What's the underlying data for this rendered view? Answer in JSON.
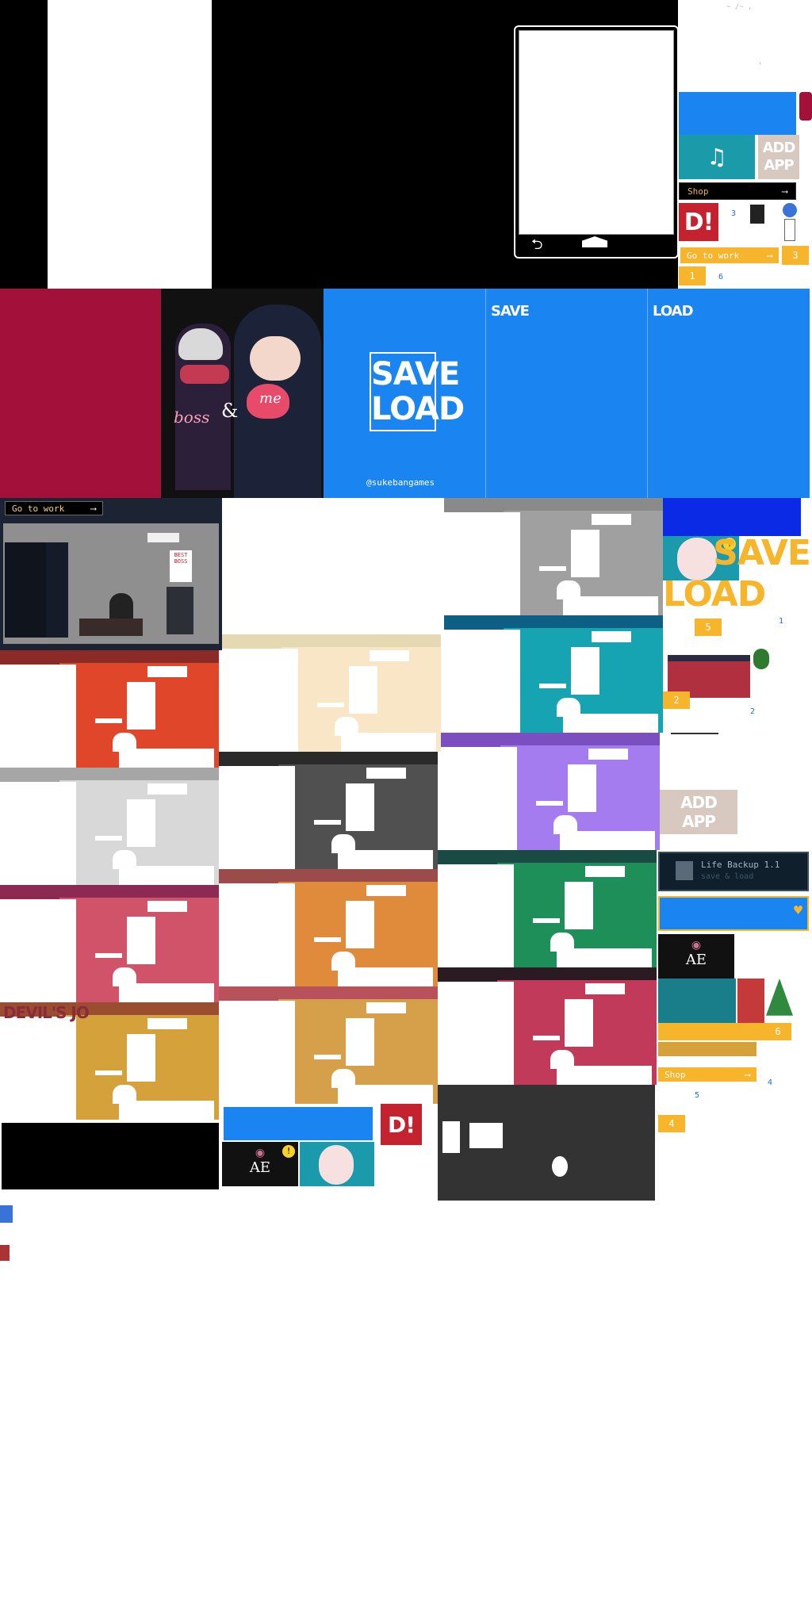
{
  "phone": {
    "back_icon": "back-arrow-icon",
    "home_icon": "home-icon"
  },
  "music_app": {
    "icon": "music-note-icon"
  },
  "add_app": {
    "line1": "ADD",
    "line2": "APP"
  },
  "shop_button": {
    "label": "Shop",
    "icon": "arrow-right-icon"
  },
  "go_to_work": {
    "label": "Go to work",
    "icon": "arrow-right-icon"
  },
  "numbers": {
    "n1": "1",
    "n2": "2",
    "n3": "3",
    "n4": "4",
    "n5": "5",
    "n6": "6"
  },
  "save_load_logo": {
    "line1": "SAVE",
    "line2": "LOAD",
    "credit": "@sukebangames"
  },
  "save_panel": {
    "title": "SAVE"
  },
  "load_panel": {
    "title": "LOAD"
  },
  "poster": {
    "text1": "boss",
    "text2": "&",
    "text3": "me"
  },
  "room_sign": {
    "line1": "BEST",
    "line2": "BOSS"
  },
  "save_load_icon": {
    "line1": "SAVE",
    "line2": "LOAD"
  },
  "life_backup": {
    "title": "Life Backup 1.1",
    "subtitle": "save & load",
    "icon": "floppy-disk-icon"
  },
  "ae_app": {
    "label": "AE",
    "icon": "eye-icon",
    "alert_icon": "exclamation-icon"
  },
  "d_app": {
    "label": "D!"
  },
  "heart_icon": "heart-icon",
  "devils_text": "DEVIL'S JO",
  "colors": {
    "blue": "#1a85f0",
    "crimson": "#a3103a",
    "orange_badge": "#f7b52c",
    "teal": "#1b9aaa",
    "dark": "#1d1d1d"
  },
  "rooms": [
    {
      "back": "#8a8a8a",
      "front": "#a0a0a0"
    },
    {
      "back": "#0d5f86",
      "front": "#16a4b3"
    },
    {
      "back": "#8b2a26",
      "front": "#e0472a"
    },
    {
      "back": "#e5d9b4",
      "front": "#f9e6c6"
    },
    {
      "back": "#7b4fc0",
      "front": "#a57bf0"
    },
    {
      "back": "#a6a6a6",
      "front": "#d8d8d8"
    },
    {
      "back": "#2a2a2a",
      "front": "#505050"
    },
    {
      "back": "#1a4a44",
      "front": "#1f8f5a"
    },
    {
      "back": "#8c2a52",
      "front": "#d0536a"
    },
    {
      "back": "#9c4b4b",
      "front": "#e08a3c"
    },
    {
      "back": "#9b4e2f",
      "front": "#d5a13a"
    },
    {
      "back": "#b8525a",
      "front": "#d6a04a"
    },
    {
      "back": "#2a1a22",
      "front": "#c23a5a"
    }
  ]
}
